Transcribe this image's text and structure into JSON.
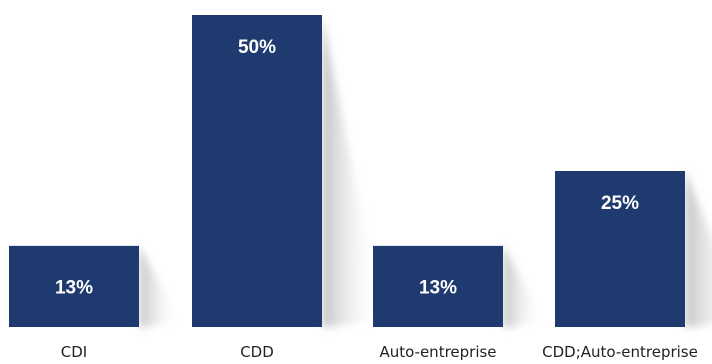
{
  "chart_data": {
    "type": "bar",
    "categories": [
      "CDI",
      "CDD",
      "Auto-entreprise",
      "CDD;Auto-entreprise"
    ],
    "values": [
      13,
      50,
      13,
      25
    ],
    "data_labels": [
      "13%",
      "50%",
      "13%",
      "25%"
    ],
    "title": "",
    "xlabel": "",
    "ylabel": "",
    "ylim": [
      0,
      50
    ],
    "grid": false,
    "legend": "none",
    "colors": {
      "bar": "#1f3a6e",
      "shadow": "#c8c8c8",
      "label_text": "#ffffff",
      "axis_text": "#222222"
    }
  }
}
